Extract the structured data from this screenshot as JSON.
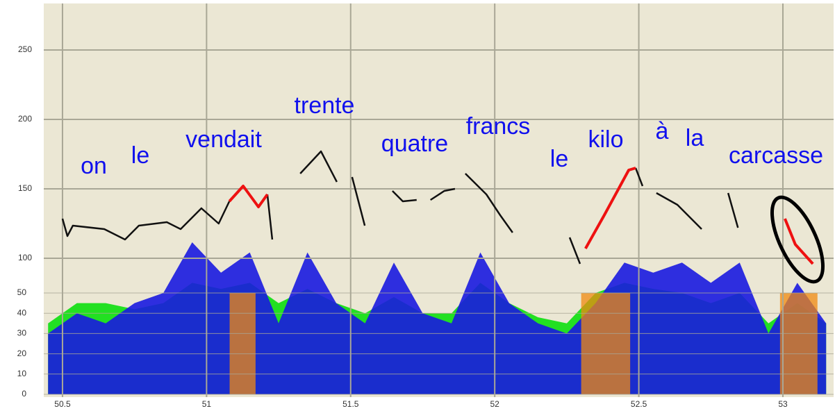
{
  "chart_data": {
    "type": "pitch-track",
    "xlim": [
      50.435,
      53.176
    ],
    "xticks": [
      50.5,
      51,
      51.5,
      52,
      52.5,
      53
    ],
    "ylim": [
      0,
      283.5
    ],
    "yticks": [
      100,
      150,
      200,
      250
    ],
    "y2lim": [
      -1.37,
      192.8
    ],
    "y2ticks": [
      0,
      10,
      20,
      30,
      40,
      50
    ],
    "grid": true,
    "words": [
      "on",
      "le",
      "vendait",
      "trente",
      "quatre",
      "francs",
      "le",
      "kilo",
      "à",
      "la",
      "carcasse"
    ],
    "word_color": "#1010ee",
    "series": [
      {
        "color": "#111111",
        "x": [
          50.5,
          50.517,
          50.536,
          50.645,
          50.717,
          50.765,
          50.862,
          50.91,
          50.982,
          51.042,
          51.079,
          null,
          51.211,
          51.228,
          null,
          51.325,
          51.397,
          51.452,
          null,
          51.505,
          51.549,
          null,
          51.645,
          51.681,
          51.729,
          null,
          51.777,
          51.825,
          51.862,
          null,
          51.898,
          51.971,
          52.019,
          52.062,
          null,
          52.26,
          52.296,
          null,
          52.489,
          52.513,
          null,
          52.561,
          52.634,
          52.718,
          null,
          52.81,
          52.844
        ],
        "values": [
          128.5,
          116,
          123.5,
          121,
          113.5,
          123.5,
          126,
          121,
          136,
          125,
          141,
          null,
          146,
          113.5,
          null,
          161,
          177,
          155,
          null,
          158.5,
          123.5,
          null,
          148.5,
          141,
          142,
          null,
          142,
          148.5,
          150,
          null,
          161,
          146,
          131,
          118.5,
          null,
          115,
          96,
          null,
          165,
          152,
          null,
          147,
          138.5,
          121,
          null,
          147,
          122
        ]
      },
      {
        "color": "#ee1111",
        "x": [
          51.079,
          51.127,
          51.18,
          51.211,
          null,
          52.315,
          52.38,
          52.465,
          52.489,
          null,
          53.007,
          53.043,
          53.104
        ],
        "values": [
          141,
          152,
          137,
          146,
          null,
          107,
          131,
          163.5,
          165,
          null,
          128.5,
          110,
          96
        ]
      }
    ],
    "intensity": {
      "x": [
        50.45,
        50.55,
        50.65,
        50.75,
        50.85,
        50.95,
        51.05,
        51.15,
        51.25,
        51.35,
        51.45,
        51.55,
        51.65,
        51.75,
        51.85,
        51.95,
        52.05,
        52.15,
        52.25,
        52.35,
        52.45,
        52.55,
        52.65,
        52.75,
        52.85,
        52.95,
        53.05,
        53.15
      ],
      "series": [
        {
          "color": "#22e022",
          "values": [
            35,
            45,
            45,
            42,
            45,
            55,
            52,
            55,
            45,
            52,
            45,
            40,
            48,
            40,
            40,
            55,
            45,
            38,
            35,
            50,
            55,
            52,
            50,
            45,
            50,
            35,
            45,
            35
          ]
        },
        {
          "color": "#1a1ae0",
          "values": [
            30,
            40,
            35,
            45,
            50,
            75,
            60,
            70,
            35,
            70,
            45,
            35,
            65,
            40,
            35,
            70,
            45,
            35,
            30,
            45,
            65,
            60,
            65,
            55,
            65,
            30,
            55,
            35
          ]
        }
      ]
    },
    "highlights": {
      "color": "#f08a10",
      "spans": [
        [
          51.08,
          51.17
        ],
        [
          52.3,
          52.47
        ],
        [
          52.99,
          53.12
        ]
      ],
      "top": 50
    }
  }
}
